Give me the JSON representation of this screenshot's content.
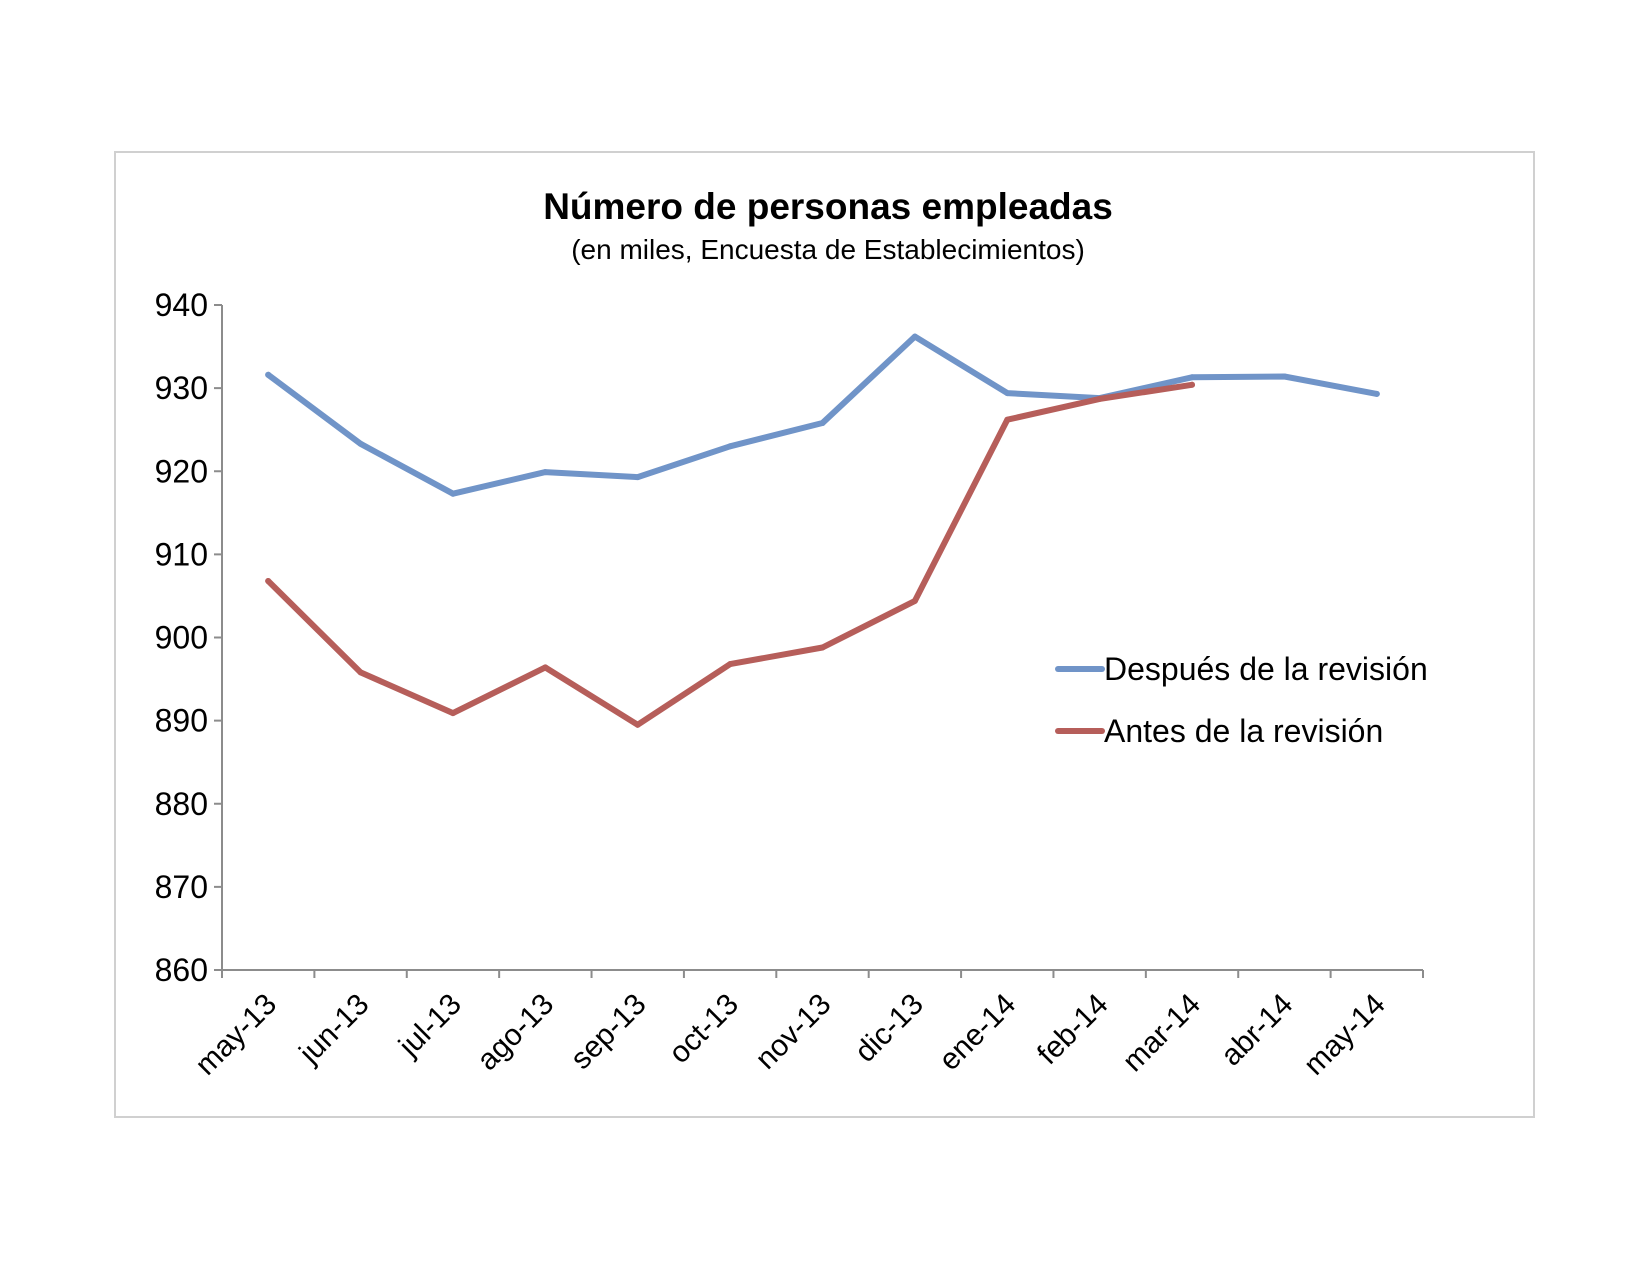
{
  "chart_data": {
    "type": "line",
    "title": "Número de personas empleadas",
    "subtitle": "(en miles, Encuesta de Establecimientos)",
    "categories": [
      "may-13",
      "jun-13",
      "jul-13",
      "ago-13",
      "sep-13",
      "oct-13",
      "nov-13",
      "dic-13",
      "ene-14",
      "feb-14",
      "mar-14",
      "abr-14",
      "may-14"
    ],
    "yticks": [
      "860",
      "870",
      "880",
      "890",
      "900",
      "910",
      "920",
      "930",
      "940"
    ],
    "ylim": [
      860,
      940
    ],
    "grid": false,
    "legend_position": "right",
    "series": [
      {
        "name": "Después de la revisión",
        "color": "#7094c8",
        "values": [
          931.6,
          923.3,
          917.3,
          919.9,
          919.3,
          923.0,
          925.8,
          936.2,
          929.4,
          928.8,
          931.3,
          931.4,
          929.3
        ]
      },
      {
        "name": "Antes de la revisión",
        "color": "#b65e5a",
        "values": [
          906.8,
          895.8,
          890.9,
          896.4,
          889.5,
          896.8,
          898.8,
          904.4,
          926.2,
          928.7,
          930.4,
          null,
          null
        ]
      }
    ]
  }
}
